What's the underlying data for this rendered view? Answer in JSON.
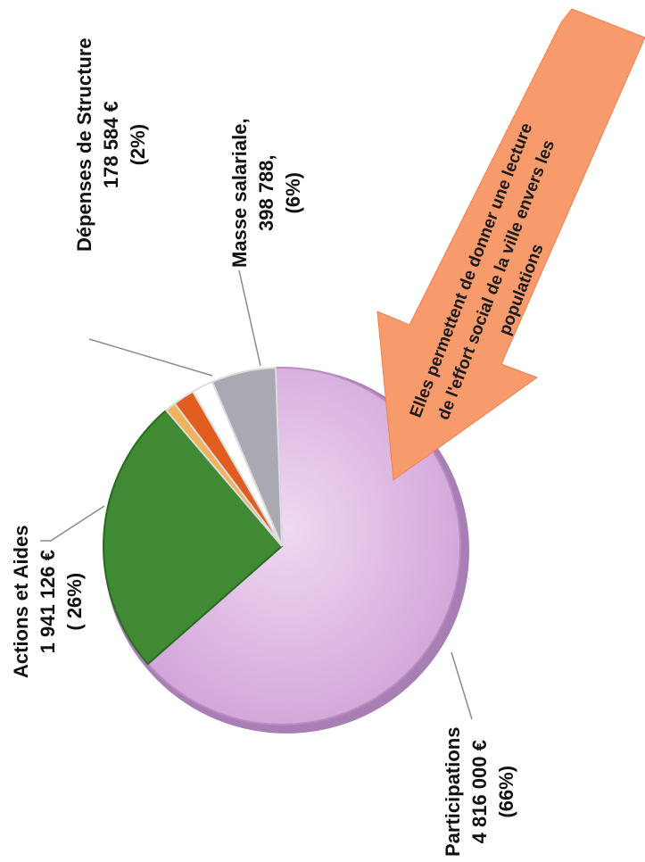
{
  "chart_data": {
    "type": "pie",
    "title": "",
    "slices": [
      {
        "label": "Participations",
        "amount": "4 816 000 €",
        "percent_label": "(66%)",
        "value": 66,
        "color": "#d8a8dd"
      },
      {
        "label": "Actions et Aides",
        "amount": "1 941 126 €",
        "percent_label": "( 26%)",
        "value": 26,
        "color": "#3f8a32"
      },
      {
        "label": "",
        "amount": "",
        "percent_label": "",
        "value": 1,
        "color": "#f0b25a"
      },
      {
        "label": "Dépenses de Structure",
        "amount": "178 584 €",
        "percent_label": "(2%)",
        "value": 2,
        "color": "#e05d1f"
      },
      {
        "label": "",
        "amount": "",
        "percent_label": "",
        "value": 2,
        "color": "#ffffff"
      },
      {
        "label": "Masse salariale,",
        "amount": "398 788,",
        "percent_label": "(6%)",
        "value": 6,
        "color": "#a9a9b4"
      }
    ],
    "legend": "none",
    "rotation_deg": -90
  },
  "callout": {
    "lines": [
      "Elles permettent de donner une lecture",
      "de l'effort social de la ville envers les",
      "populations"
    ],
    "color": "#f79a6c"
  }
}
